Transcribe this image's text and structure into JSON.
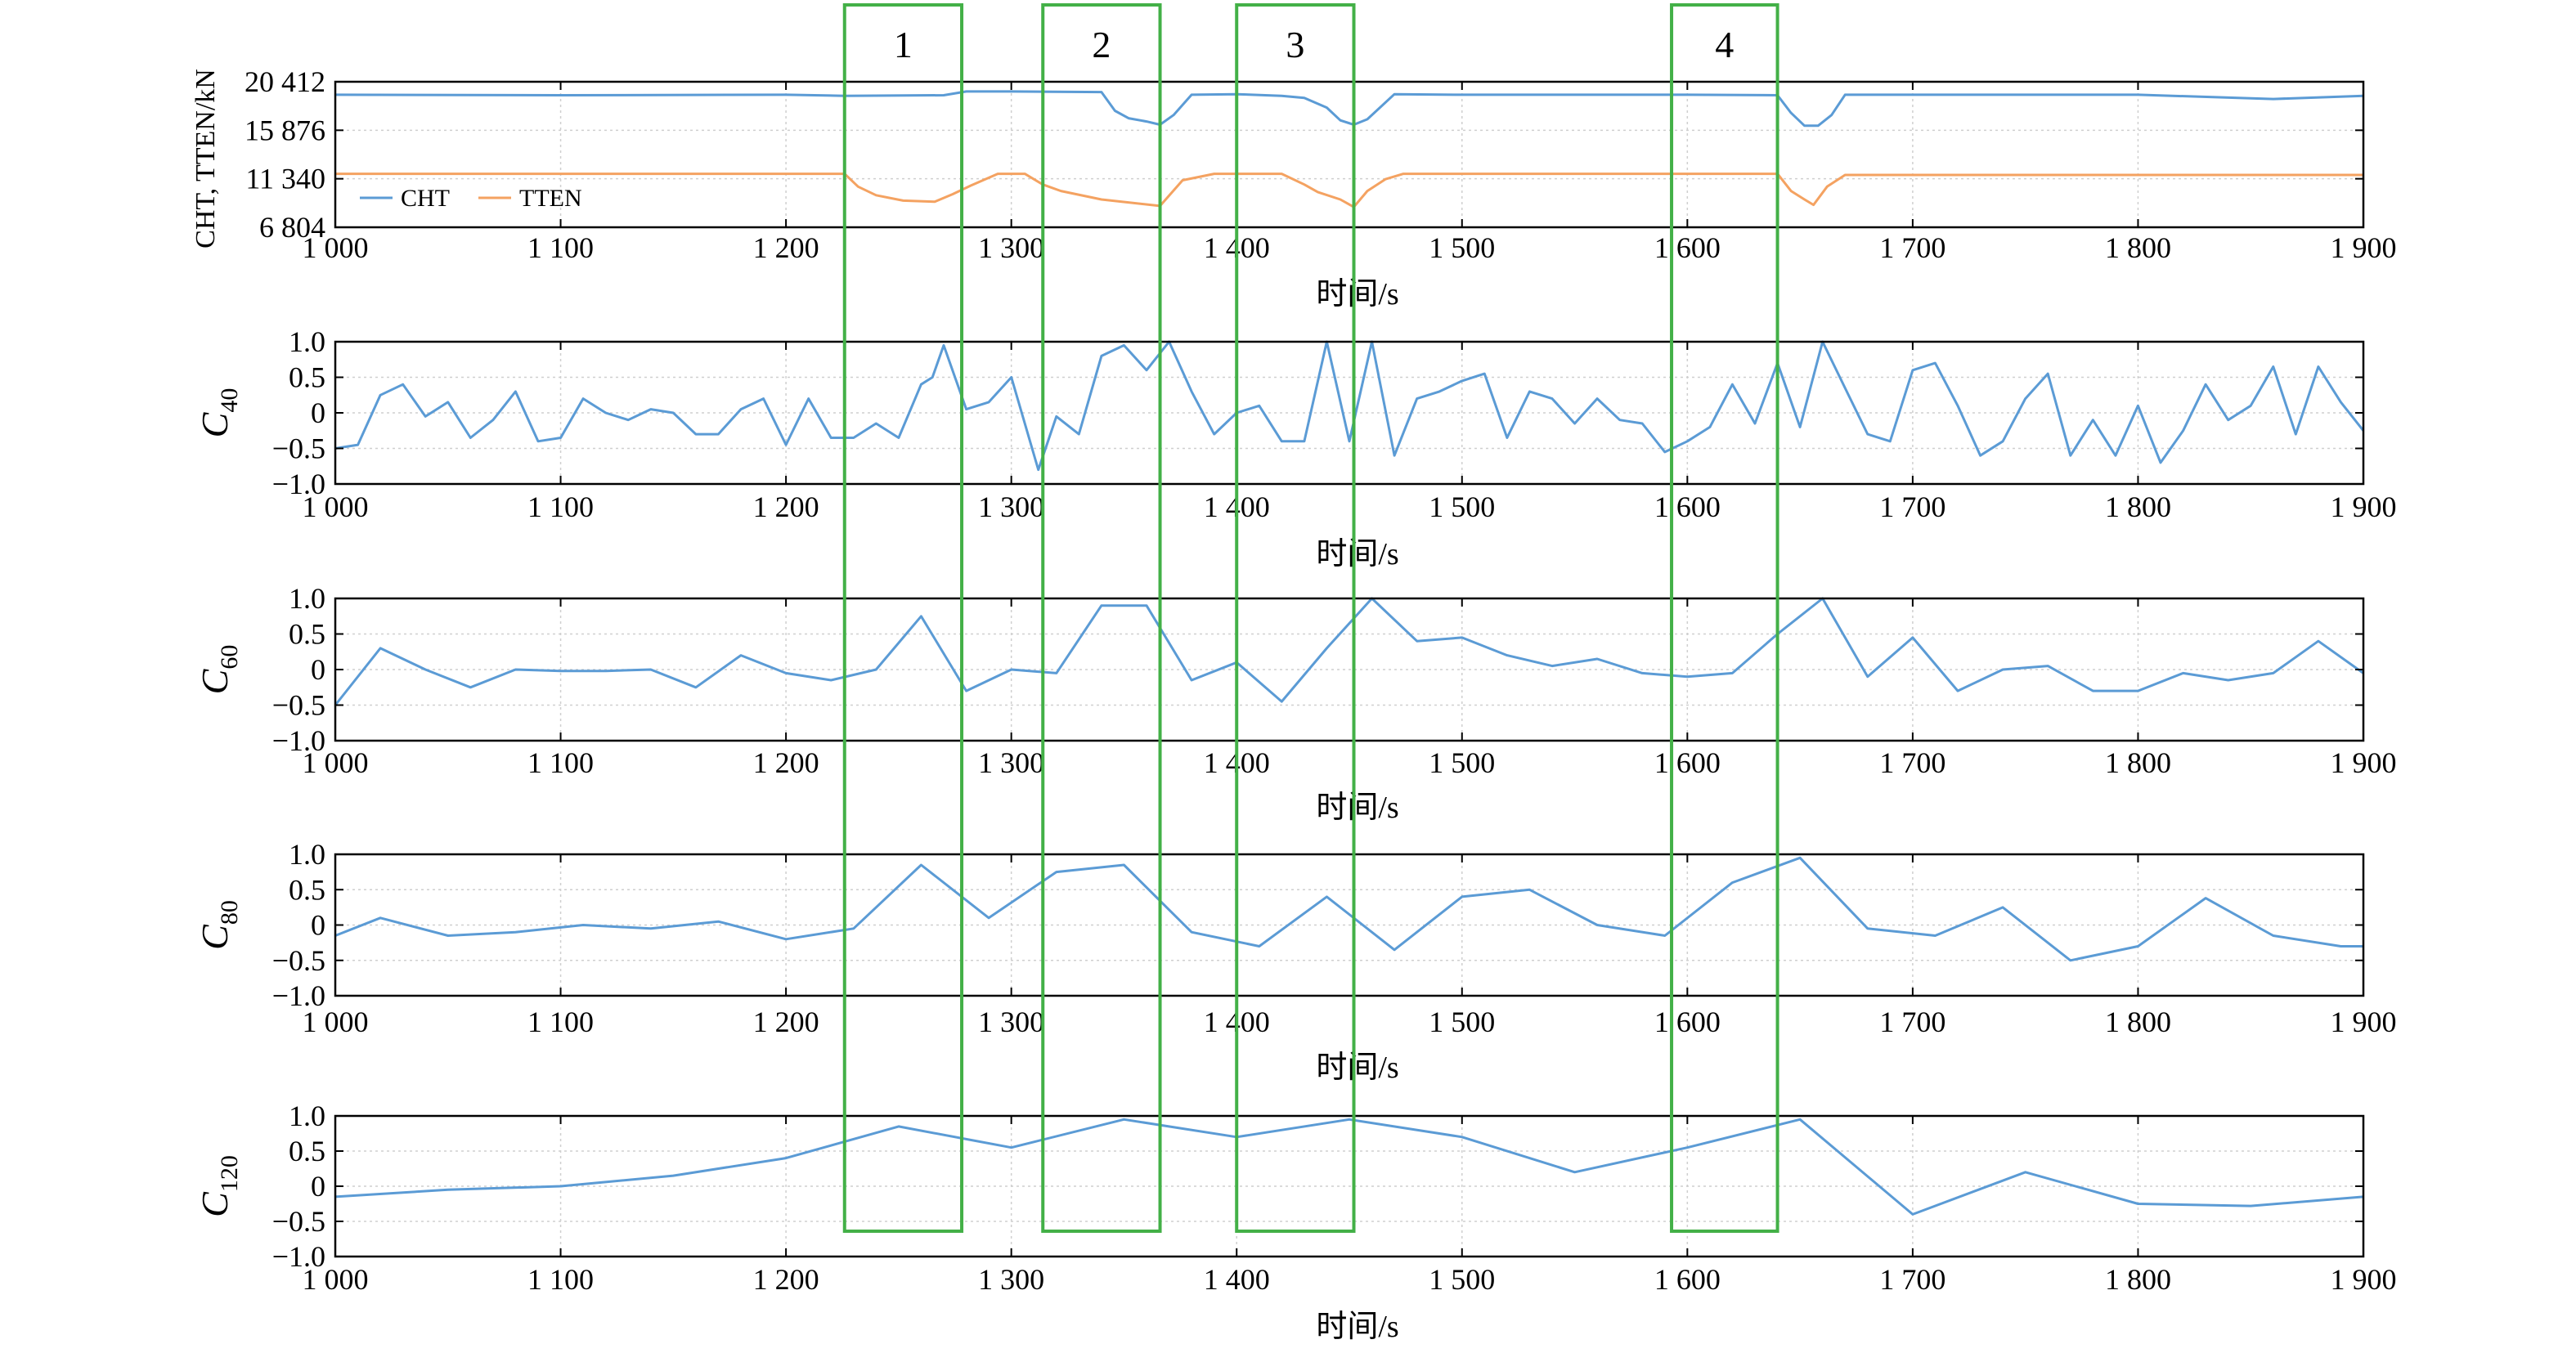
{
  "x_tick_labels": [
    "1 000",
    "1 100",
    "1 200",
    "1 300",
    "1 400",
    "1 500",
    "1 600",
    "1 700",
    "1 800",
    "1 900"
  ],
  "time_label": "时间/s",
  "colors": {
    "cht": "#5b9bd5",
    "tten": "#f4a261",
    "box": "#43b047",
    "grid": "#cfcfcf",
    "axis": "#000000"
  },
  "boxes": [
    {
      "label": "1",
      "x_start": 1226,
      "x_end": 1278
    },
    {
      "label": "2",
      "x_start": 1314,
      "x_end": 1366
    },
    {
      "label": "3",
      "x_start": 1400,
      "x_end": 1452
    },
    {
      "label": "4",
      "x_start": 1593,
      "x_end": 1640
    }
  ],
  "chart_data": [
    {
      "type": "line",
      "ylabel": "CHT, TTEN/kN",
      "xlabel": "时间/s",
      "xlim": [
        1000,
        1900
      ],
      "ylim": [
        6804,
        20412
      ],
      "y_tick_labels": [
        "20 412",
        "15 876",
        "11 340",
        "6 804"
      ],
      "y_ticks": [
        20412,
        15876,
        11340,
        6804
      ],
      "legend": "bottom-left",
      "grid": true,
      "series": [
        {
          "name": "CHT",
          "x": [
            1000,
            1100,
            1200,
            1226,
            1270,
            1280,
            1300,
            1340,
            1346,
            1352,
            1360,
            1366,
            1372,
            1380,
            1400,
            1420,
            1430,
            1440,
            1446,
            1452,
            1458,
            1470,
            1500,
            1600,
            1640,
            1646,
            1652,
            1658,
            1664,
            1670,
            1700,
            1800,
            1860,
            1900
          ],
          "y": [
            19200,
            19150,
            19200,
            19100,
            19150,
            19500,
            19500,
            19450,
            17700,
            17000,
            16700,
            16400,
            17300,
            19200,
            19250,
            19100,
            18900,
            18000,
            16800,
            16400,
            16900,
            19250,
            19200,
            19200,
            19150,
            17500,
            16300,
            16300,
            17300,
            19200,
            19200,
            19200,
            18800,
            19100
          ]
        },
        {
          "name": "TTEN",
          "x": [
            1000,
            1100,
            1200,
            1226,
            1232,
            1240,
            1252,
            1266,
            1274,
            1282,
            1294,
            1306,
            1314,
            1322,
            1340,
            1366,
            1376,
            1390,
            1400,
            1420,
            1430,
            1436,
            1446,
            1452,
            1458,
            1466,
            1474,
            1500,
            1600,
            1640,
            1646,
            1652,
            1656,
            1662,
            1670,
            1700,
            1800,
            1900
          ],
          "y": [
            11800,
            11800,
            11800,
            11800,
            10600,
            9800,
            9300,
            9200,
            9900,
            10700,
            11800,
            11800,
            10800,
            10200,
            9400,
            8800,
            11200,
            11800,
            11800,
            11800,
            10800,
            10100,
            9400,
            8700,
            10200,
            11300,
            11800,
            11800,
            11800,
            11800,
            10200,
            9400,
            8900,
            10600,
            11700,
            11700,
            11700,
            11700
          ]
        }
      ]
    },
    {
      "type": "line",
      "ylabel": "C40",
      "ylabel_main": "C",
      "ylabel_sub": "40",
      "xlabel": "时间/s",
      "xlim": [
        1000,
        1900
      ],
      "ylim": [
        -1.0,
        1.0
      ],
      "y_tick_labels": [
        "1.0",
        "0.5",
        "0",
        "−0.5",
        "−1.0"
      ],
      "y_ticks": [
        1.0,
        0.5,
        0,
        -0.5,
        -1.0
      ],
      "grid": true,
      "series": [
        {
          "name": "",
          "x": [
            1000,
            1010,
            1020,
            1030,
            1040,
            1050,
            1060,
            1070,
            1080,
            1090,
            1100,
            1110,
            1120,
            1130,
            1140,
            1150,
            1160,
            1170,
            1180,
            1190,
            1200,
            1210,
            1220,
            1230,
            1240,
            1250,
            1260,
            1265,
            1270,
            1275,
            1280,
            1290,
            1300,
            1312,
            1320,
            1330,
            1340,
            1350,
            1360,
            1370,
            1380,
            1390,
            1400,
            1410,
            1420,
            1430,
            1440,
            1450,
            1460,
            1470,
            1480,
            1490,
            1500,
            1510,
            1520,
            1530,
            1540,
            1550,
            1560,
            1570,
            1580,
            1590,
            1600,
            1610,
            1620,
            1630,
            1640,
            1650,
            1660,
            1670,
            1680,
            1690,
            1700,
            1710,
            1720,
            1730,
            1740,
            1750,
            1760,
            1770,
            1780,
            1790,
            1800,
            1810,
            1820,
            1830,
            1840,
            1850,
            1860,
            1870,
            1880,
            1890,
            1900
          ],
          "y": [
            -0.5,
            -0.45,
            0.25,
            0.4,
            -0.05,
            0.15,
            -0.35,
            -0.1,
            0.3,
            -0.4,
            -0.35,
            0.2,
            0.0,
            -0.1,
            0.05,
            0.0,
            -0.3,
            -0.3,
            0.05,
            0.2,
            -0.45,
            0.2,
            -0.35,
            -0.35,
            -0.15,
            -0.35,
            0.4,
            0.5,
            0.95,
            0.5,
            0.05,
            0.15,
            0.5,
            -0.8,
            -0.05,
            -0.3,
            0.8,
            0.95,
            0.6,
            1.0,
            0.3,
            -0.3,
            0.0,
            0.1,
            -0.4,
            -0.4,
            1.0,
            -0.4,
            1.0,
            -0.6,
            0.2,
            0.3,
            0.45,
            0.55,
            -0.35,
            0.3,
            0.2,
            -0.15,
            0.2,
            -0.1,
            -0.15,
            -0.55,
            -0.4,
            -0.2,
            0.4,
            -0.15,
            0.7,
            -0.2,
            1.0,
            0.35,
            -0.3,
            -0.4,
            0.6,
            0.7,
            0.1,
            -0.6,
            -0.4,
            0.2,
            0.55,
            -0.6,
            -0.1,
            -0.6,
            0.1,
            -0.7,
            -0.25,
            0.4,
            -0.1,
            0.1,
            0.65,
            -0.3,
            0.65,
            0.15,
            -0.25
          ]
        }
      ]
    },
    {
      "type": "line",
      "ylabel": "C60",
      "ylabel_main": "C",
      "ylabel_sub": "60",
      "xlabel": "时间/s",
      "xlim": [
        1000,
        1900
      ],
      "ylim": [
        -1.0,
        1.0
      ],
      "y_tick_labels": [
        "1.0",
        "0.5",
        "0",
        "−0.5",
        "−1.0"
      ],
      "y_ticks": [
        1.0,
        0.5,
        0,
        -0.5,
        -1.0
      ],
      "grid": true,
      "series": [
        {
          "name": "",
          "x": [
            1000,
            1020,
            1040,
            1060,
            1080,
            1100,
            1120,
            1140,
            1160,
            1180,
            1200,
            1220,
            1240,
            1260,
            1280,
            1300,
            1320,
            1340,
            1360,
            1380,
            1400,
            1420,
            1440,
            1460,
            1480,
            1500,
            1520,
            1540,
            1560,
            1580,
            1600,
            1620,
            1640,
            1660,
            1680,
            1700,
            1720,
            1740,
            1760,
            1780,
            1800,
            1820,
            1840,
            1860,
            1880,
            1900
          ],
          "y": [
            -0.5,
            0.3,
            0.0,
            -0.25,
            0.0,
            -0.02,
            -0.02,
            0.0,
            -0.25,
            0.2,
            -0.05,
            -0.15,
            0.0,
            0.75,
            -0.3,
            0.0,
            -0.05,
            0.9,
            0.9,
            -0.15,
            0.1,
            -0.45,
            0.3,
            1.0,
            0.4,
            0.45,
            0.2,
            0.05,
            0.15,
            -0.05,
            -0.1,
            -0.05,
            0.5,
            1.0,
            -0.1,
            0.45,
            -0.3,
            0.0,
            0.05,
            -0.3,
            -0.3,
            -0.05,
            -0.15,
            -0.05,
            0.4,
            -0.05
          ]
        }
      ]
    },
    {
      "type": "line",
      "ylabel": "C80",
      "ylabel_main": "C",
      "ylabel_sub": "80",
      "xlabel": "时间/s",
      "xlim": [
        1000,
        1900
      ],
      "ylim": [
        -1.0,
        1.0
      ],
      "y_tick_labels": [
        "1.0",
        "0.5",
        "0",
        "−0.5",
        "−1.0"
      ],
      "y_ticks": [
        1.0,
        0.5,
        0,
        -0.5,
        -1.0
      ],
      "grid": true,
      "series": [
        {
          "name": "",
          "x": [
            1000,
            1020,
            1050,
            1080,
            1110,
            1140,
            1170,
            1200,
            1230,
            1260,
            1290,
            1320,
            1350,
            1380,
            1410,
            1440,
            1470,
            1500,
            1530,
            1560,
            1590,
            1620,
            1650,
            1680,
            1710,
            1740,
            1770,
            1800,
            1830,
            1860,
            1890,
            1900
          ],
          "y": [
            -0.15,
            0.1,
            -0.15,
            -0.1,
            0.0,
            -0.05,
            0.05,
            -0.2,
            -0.05,
            0.85,
            0.1,
            0.75,
            0.85,
            -0.1,
            -0.3,
            0.4,
            -0.35,
            0.4,
            0.5,
            0.0,
            -0.15,
            0.6,
            0.95,
            -0.05,
            -0.15,
            0.25,
            -0.5,
            -0.3,
            0.38,
            -0.15,
            -0.3,
            -0.3
          ]
        }
      ]
    },
    {
      "type": "line",
      "ylabel": "C120",
      "ylabel_main": "C",
      "ylabel_sub": "120",
      "xlabel": "时间/s",
      "xlim": [
        1000,
        1900
      ],
      "ylim": [
        -1.0,
        1.0
      ],
      "y_tick_labels": [
        "1.0",
        "0.5",
        "0",
        "−0.5",
        "−1.0"
      ],
      "y_ticks": [
        1.0,
        0.5,
        0,
        -0.5,
        -1.0
      ],
      "grid": true,
      "series": [
        {
          "name": "",
          "x": [
            1000,
            1050,
            1100,
            1150,
            1200,
            1250,
            1300,
            1350,
            1400,
            1450,
            1500,
            1550,
            1600,
            1650,
            1700,
            1750,
            1800,
            1850,
            1900
          ],
          "y": [
            -0.15,
            -0.05,
            0.0,
            0.15,
            0.4,
            0.85,
            0.55,
            0.95,
            0.7,
            0.95,
            0.7,
            0.2,
            0.55,
            0.95,
            -0.4,
            0.2,
            -0.25,
            -0.28,
            -0.15
          ]
        }
      ]
    }
  ]
}
